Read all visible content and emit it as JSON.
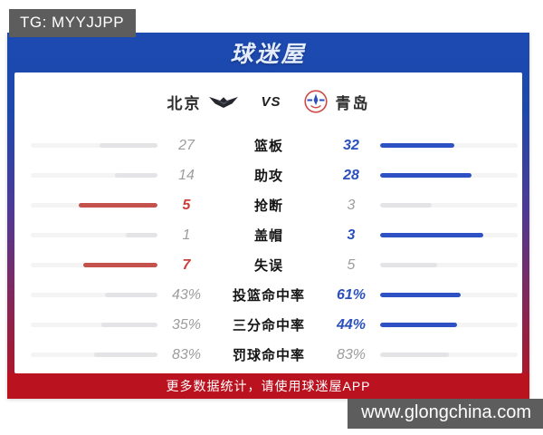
{
  "watermarks": {
    "top_left": "TG: MYYJJPP",
    "bottom_right": "www.glongchina.com"
  },
  "header": {
    "logo_text": "球迷屋"
  },
  "match": {
    "home": {
      "name": "北京"
    },
    "away": {
      "name": "青岛"
    },
    "vs_label": "VS"
  },
  "stats": [
    {
      "label": "篮板",
      "home": "27",
      "away": "32"
    },
    {
      "label": "助攻",
      "home": "14",
      "away": "28"
    },
    {
      "label": "抢断",
      "home": "5",
      "away": "3"
    },
    {
      "label": "盖帽",
      "home": "1",
      "away": "3"
    },
    {
      "label": "失误",
      "home": "7",
      "away": "5"
    },
    {
      "label": "投篮命中率",
      "home": "43%",
      "away": "61%"
    },
    {
      "label": "三分命中率",
      "home": "35%",
      "away": "44%"
    },
    {
      "label": "罚球命中率",
      "home": "83%",
      "away": "83%"
    }
  ],
  "footer": {
    "text": "更多数据统计，请使用球迷屋APP"
  },
  "colors": {
    "header_blue": "#1c4ab1",
    "footer_red": "#bb1220",
    "home_accent": "#cc3f38",
    "away_accent": "#2b50bd",
    "home_bar": "#c4514b",
    "away_bar": "#2e52c4",
    "badge_bg": "#5d5d5d"
  }
}
